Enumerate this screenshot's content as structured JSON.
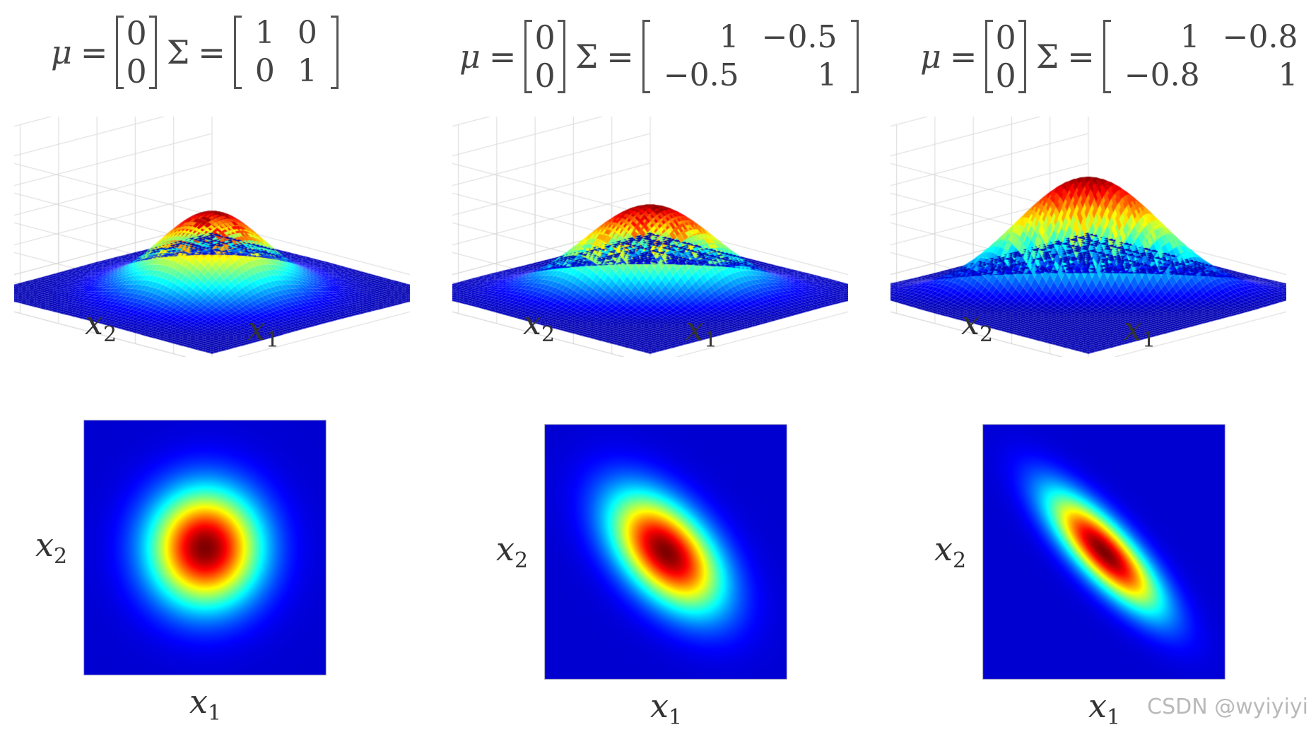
{
  "chart_data": [
    {
      "type": "heatmap",
      "subtype": "bivariate-normal-density-3d-surface-and-top-view",
      "mu": [
        "0",
        "0"
      ],
      "sigma": [
        [
          "1",
          "0"
        ],
        [
          "0",
          "1"
        ]
      ],
      "covariance": {
        "var_x1": 1,
        "var_x2": 1,
        "cov": 0
      },
      "xlabel": "x1",
      "ylabel": "x2"
    },
    {
      "type": "heatmap",
      "subtype": "bivariate-normal-density-3d-surface-and-top-view",
      "mu": [
        "0",
        "0"
      ],
      "sigma": [
        [
          "1",
          "−0.5"
        ],
        [
          "−0.5",
          "1"
        ]
      ],
      "covariance": {
        "var_x1": 1,
        "var_x2": 1,
        "cov": -0.5
      },
      "xlabel": "x1",
      "ylabel": "x2"
    },
    {
      "type": "heatmap",
      "subtype": "bivariate-normal-density-3d-surface-and-top-view",
      "mu": [
        "0",
        "0"
      ],
      "sigma": [
        [
          "1",
          "−0.8"
        ],
        [
          "−0.8",
          "1"
        ]
      ],
      "covariance": {
        "var_x1": 1,
        "var_x2": 1,
        "cov": -0.8
      },
      "xlabel": "x1",
      "ylabel": "x2"
    }
  ],
  "labels": {
    "mu_symbol": "μ",
    "sigma_symbol": "Σ",
    "equals": "=",
    "x_base": "x",
    "x1_sub": "1",
    "x2_sub": "2"
  },
  "colormap": [
    "#00007f",
    "#0000ff",
    "#007fff",
    "#00ffff",
    "#7fff7f",
    "#ffff00",
    "#ff7f00",
    "#ff0000",
    "#7f0000"
  ],
  "watermark": "CSDN @wyiyiyi"
}
